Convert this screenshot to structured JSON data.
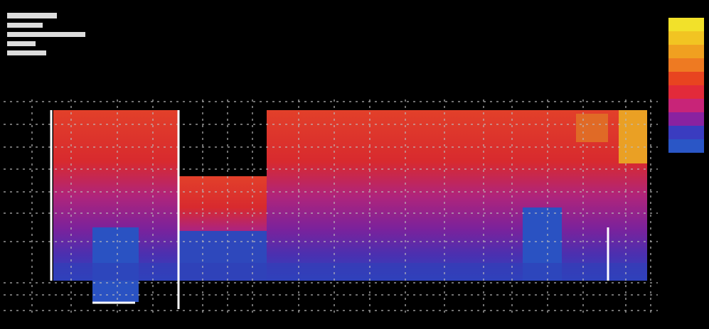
{
  "legend": {
    "colors": [
      "#f2e12a",
      "#f2c422",
      "#f0a020",
      "#ee7a22",
      "#e84420",
      "#e22a3a",
      "#c82478",
      "#8a22a0",
      "#3a3cc0",
      "#2a56c6"
    ]
  }
}
